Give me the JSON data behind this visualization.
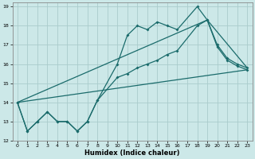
{
  "title": "",
  "xlabel": "Humidex (Indice chaleur)",
  "bg_color": "#cce8e8",
  "grid_color": "#aacccc",
  "line_color": "#1a6b6b",
  "xlim": [
    -0.5,
    23.5
  ],
  "ylim": [
    12,
    19.2
  ],
  "yticks": [
    12,
    13,
    14,
    15,
    16,
    17,
    18,
    19
  ],
  "xticks": [
    0,
    1,
    2,
    3,
    4,
    5,
    6,
    7,
    8,
    9,
    10,
    11,
    12,
    13,
    14,
    15,
    16,
    17,
    18,
    19,
    20,
    21,
    22,
    23
  ],
  "line1_x": [
    0,
    1,
    2,
    3,
    4,
    5,
    6,
    7,
    8,
    10,
    11,
    12,
    13,
    14,
    15,
    16,
    18,
    19,
    20,
    21,
    22,
    23
  ],
  "line1_y": [
    14.0,
    12.5,
    13.0,
    13.5,
    13.0,
    13.0,
    12.5,
    13.0,
    14.1,
    16.0,
    17.5,
    18.0,
    17.8,
    18.2,
    18.0,
    17.8,
    19.0,
    18.3,
    17.0,
    16.3,
    16.0,
    15.8
  ],
  "line2_x": [
    0,
    1,
    2,
    3,
    4,
    5,
    6,
    7,
    8,
    10,
    11,
    12,
    13,
    14,
    15,
    16,
    18,
    19,
    20,
    21,
    22,
    23
  ],
  "line2_y": [
    14.0,
    12.5,
    13.0,
    13.5,
    13.0,
    13.0,
    12.5,
    13.0,
    14.1,
    15.3,
    15.5,
    15.8,
    16.0,
    16.2,
    16.5,
    16.7,
    18.0,
    18.3,
    16.9,
    16.2,
    15.9,
    15.7
  ],
  "line3_x": [
    0,
    23
  ],
  "line3_y": [
    14.0,
    15.7
  ],
  "line4_x": [
    0,
    19,
    23
  ],
  "line4_y": [
    14.0,
    18.3,
    15.8
  ]
}
